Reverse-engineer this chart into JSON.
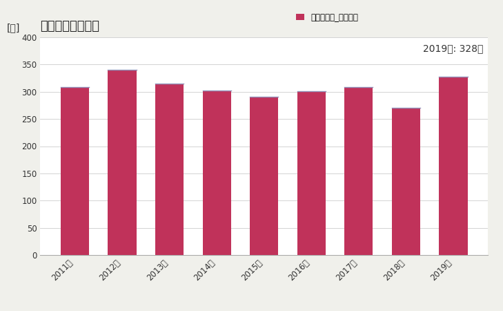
{
  "title": "建築物総数の推移",
  "ylabel": "[棟]",
  "legend_label": "全建築物計_建築物数",
  "annotation": "2019年: 328棟",
  "years": [
    "2011年",
    "2012年",
    "2013年",
    "2014年",
    "2015年",
    "2016年",
    "2017年",
    "2018年",
    "2019年"
  ],
  "values": [
    308,
    340,
    315,
    302,
    291,
    301,
    309,
    271,
    328
  ],
  "bar_color_main": "#c0325a",
  "bar_color_stripe": "#9090b8",
  "ylim": [
    0,
    400
  ],
  "yticks": [
    0,
    50,
    100,
    150,
    200,
    250,
    300,
    350,
    400
  ],
  "background_color": "#f0f0eb",
  "plot_bg_color": "#ffffff",
  "title_fontsize": 13,
  "legend_fontsize": 8.5,
  "annotation_fontsize": 10,
  "ylabel_fontsize": 10,
  "tick_fontsize": 8.5
}
